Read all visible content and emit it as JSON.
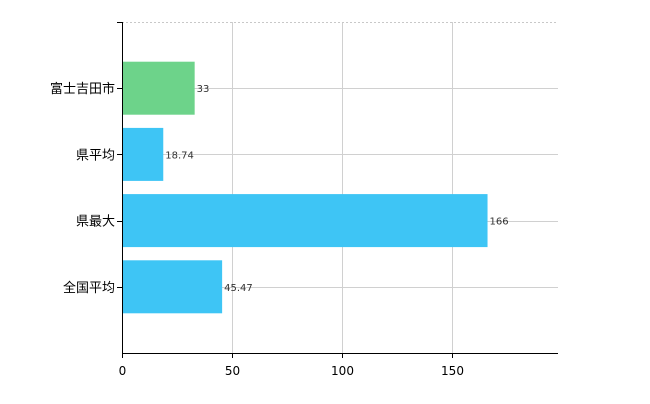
{
  "chart_data": {
    "type": "bar",
    "orientation": "horizontal",
    "categories": [
      "富士吉田市",
      "県平均",
      "県最大",
      "全国平均"
    ],
    "values": [
      33,
      18.74,
      166,
      45.47
    ],
    "value_labels": [
      "33",
      "18.74",
      "166",
      "45.47"
    ],
    "bar_colors": [
      "#6dd38a",
      "#3ec5f5",
      "#3ec5f5",
      "#3ec5f5"
    ],
    "x_ticks": [
      0,
      50,
      100,
      150
    ],
    "x_tick_labels": [
      "0",
      "50",
      "100",
      "150"
    ],
    "xlim": [
      0,
      198
    ],
    "grid": true,
    "title": "",
    "xlabel": "",
    "ylabel": ""
  }
}
